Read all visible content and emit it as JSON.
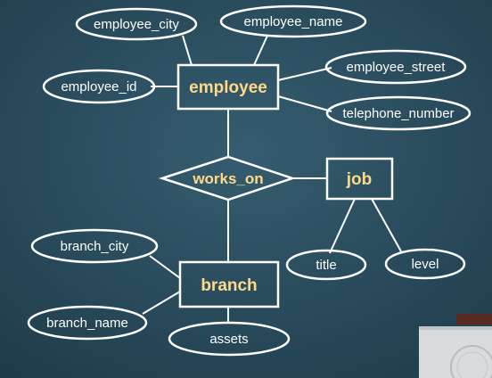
{
  "colors": {
    "background": "#2a4d5e",
    "line": "#ffffff",
    "entity_text": "#ffd98a",
    "attribute_text": "#ffffff",
    "podium": "#d9dcdc"
  },
  "entities": {
    "employee": "employee",
    "job": "job",
    "branch": "branch"
  },
  "relationships": {
    "works_on": "works_on"
  },
  "attributes": {
    "employee_city": "employee_city",
    "employee_name": "employee_name",
    "employee_id": "employee_id",
    "employee_street": "employee_street",
    "telephone_number": "telephone_number",
    "title": "title",
    "level": "level",
    "branch_city": "branch_city",
    "branch_name": "branch_name",
    "assets": "assets"
  }
}
